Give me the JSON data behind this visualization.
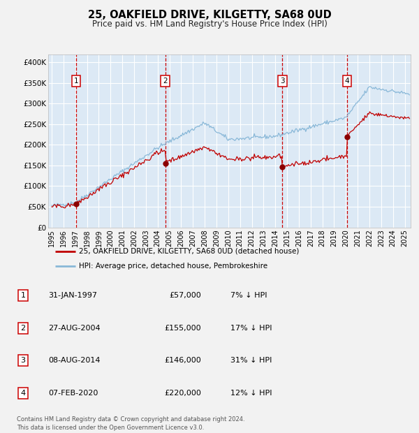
{
  "title": "25, OAKFIELD DRIVE, KILGETTY, SA68 0UD",
  "subtitle": "Price paid vs. HM Land Registry's House Price Index (HPI)",
  "background_color": "#f0f0f0",
  "plot_bg_color": "#dce9f5",
  "grid_color": "#ffffff",
  "red_line_color": "#c00000",
  "blue_line_color": "#89b8d8",
  "sale_dot_color": "#8b0000",
  "vline_color": "#cc0000",
  "ylim": [
    0,
    420000
  ],
  "yticks": [
    0,
    50000,
    100000,
    150000,
    200000,
    250000,
    300000,
    350000,
    400000
  ],
  "ytick_labels": [
    "£0",
    "£50K",
    "£100K",
    "£150K",
    "£200K",
    "£250K",
    "£300K",
    "£350K",
    "£400K"
  ],
  "xlim_start": 1994.7,
  "xlim_end": 2025.5,
  "xticks": [
    1995,
    1996,
    1997,
    1998,
    1999,
    2000,
    2001,
    2002,
    2003,
    2004,
    2005,
    2006,
    2007,
    2008,
    2009,
    2010,
    2011,
    2012,
    2013,
    2014,
    2015,
    2016,
    2017,
    2018,
    2019,
    2020,
    2021,
    2022,
    2023,
    2024,
    2025
  ],
  "sale_events": [
    {
      "num": 1,
      "date": "31-JAN-1997",
      "year": 1997.08,
      "price": 57000
    },
    {
      "num": 2,
      "date": "27-AUG-2004",
      "year": 2004.65,
      "price": 155000
    },
    {
      "num": 3,
      "date": "08-AUG-2014",
      "year": 2014.6,
      "price": 146000
    },
    {
      "num": 4,
      "date": "07-FEB-2020",
      "year": 2020.1,
      "price": 220000
    }
  ],
  "legend_entries": [
    {
      "label": "25, OAKFIELD DRIVE, KILGETTY, SA68 0UD (detached house)",
      "color": "#c00000"
    },
    {
      "label": "HPI: Average price, detached house, Pembrokeshire",
      "color": "#89b8d8"
    }
  ],
  "table_rows": [
    {
      "num": 1,
      "date": "31-JAN-1997",
      "price": "£57,000",
      "hpi": "7% ↓ HPI"
    },
    {
      "num": 2,
      "date": "27-AUG-2004",
      "price": "£155,000",
      "hpi": "17% ↓ HPI"
    },
    {
      "num": 3,
      "date": "08-AUG-2014",
      "price": "£146,000",
      "hpi": "31% ↓ HPI"
    },
    {
      "num": 4,
      "date": "07-FEB-2020",
      "price": "£220,000",
      "hpi": "12% ↓ HPI"
    }
  ],
  "footnote": "Contains HM Land Registry data © Crown copyright and database right 2024.\nThis data is licensed under the Open Government Licence v3.0."
}
